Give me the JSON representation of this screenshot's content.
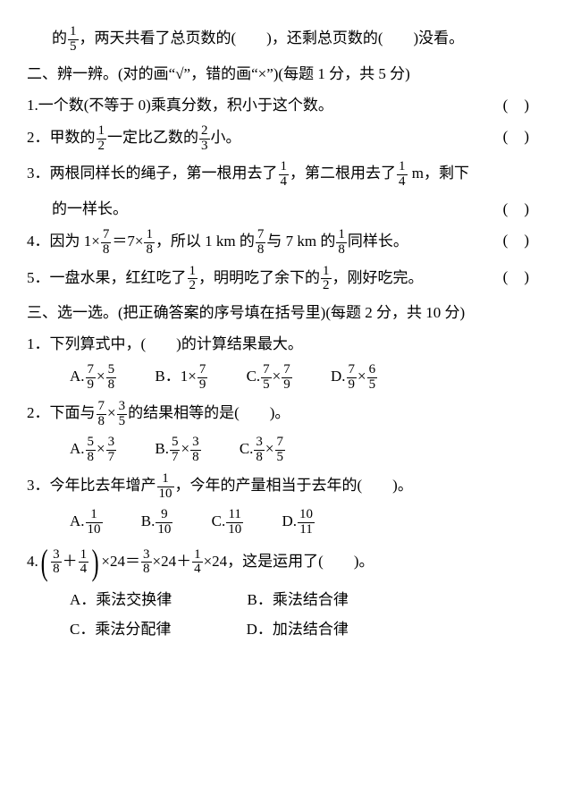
{
  "intro": {
    "prefix": "的",
    "f": {
      "n": "1",
      "d": "5"
    },
    "mid": "，两天共看了总页数的(　　)，还剩总页数的(　　)没看。"
  },
  "sec2_title": "二、辨一辨。(对的画“√”，错的画“×”)(每题 1 分，共 5 分)",
  "q2_1": "1.一个数(不等于 0)乘真分数，积小于这个数。",
  "q2_2a": "2．甲数的",
  "q2_2f1": {
    "n": "1",
    "d": "2"
  },
  "q2_2b": "一定比乙数的",
  "q2_2f2": {
    "n": "2",
    "d": "3"
  },
  "q2_2c": "小。",
  "q2_3a": "3．两根同样长的绳子，第一根用去了",
  "q2_3f1": {
    "n": "1",
    "d": "4"
  },
  "q2_3b": "，第二根用去了",
  "q2_3f2": {
    "n": "1",
    "d": "4"
  },
  "q2_3c": " m，剩下",
  "q2_3d": "的一样长。",
  "q2_4a": "4．因为 1×",
  "q2_4f1": {
    "n": "7",
    "d": "8"
  },
  "q2_4b": "＝7×",
  "q2_4f2": {
    "n": "1",
    "d": "8"
  },
  "q2_4c": "，所以 1 km 的",
  "q2_4f3": {
    "n": "7",
    "d": "8"
  },
  "q2_4d": "与 7 km 的",
  "q2_4f4": {
    "n": "1",
    "d": "8"
  },
  "q2_4e": "同样长。",
  "q2_5a": "5．一盘水果，红红吃了",
  "q2_5f1": {
    "n": "1",
    "d": "2"
  },
  "q2_5b": "，明明吃了余下的",
  "q2_5f2": {
    "n": "1",
    "d": "2"
  },
  "q2_5c": "，刚好吃完。",
  "sec3_title": "三、选一选。(把正确答案的序号填在括号里)(每题 2 分，共 10 分)",
  "q3_1": "1．下列算式中，(　　)的计算结果最大。",
  "q3_1A": {
    "p": "A.",
    "a": {
      "n": "7",
      "d": "9"
    },
    "b": {
      "n": "5",
      "d": "8"
    }
  },
  "q3_1B": {
    "p": "B．1×",
    "a": {
      "n": "7",
      "d": "9"
    }
  },
  "q3_1C": {
    "p": "C.",
    "a": {
      "n": "7",
      "d": "5"
    },
    "b": {
      "n": "7",
      "d": "9"
    }
  },
  "q3_1D": {
    "p": "D.",
    "a": {
      "n": "7",
      "d": "9"
    },
    "b": {
      "n": "6",
      "d": "5"
    }
  },
  "q3_2a": "2．下面与",
  "q3_2f1": {
    "n": "7",
    "d": "8"
  },
  "q3_2b": "×",
  "q3_2f2": {
    "n": "3",
    "d": "5"
  },
  "q3_2c": "的结果相等的是(　　)。",
  "q3_2A": {
    "p": "A.",
    "a": {
      "n": "5",
      "d": "8"
    },
    "b": {
      "n": "3",
      "d": "7"
    }
  },
  "q3_2B": {
    "p": "B.",
    "a": {
      "n": "5",
      "d": "7"
    },
    "b": {
      "n": "3",
      "d": "8"
    }
  },
  "q3_2C": {
    "p": "C.",
    "a": {
      "n": "3",
      "d": "8"
    },
    "b": {
      "n": "7",
      "d": "5"
    }
  },
  "q3_3a": "3．今年比去年增产",
  "q3_3f": {
    "n": "1",
    "d": "10"
  },
  "q3_3b": "，今年的产量相当于去年的(　　)。",
  "q3_3A": {
    "p": "A.",
    "a": {
      "n": "1",
      "d": "10"
    }
  },
  "q3_3B": {
    "p": "B.",
    "a": {
      "n": "9",
      "d": "10"
    }
  },
  "q3_3C": {
    "p": "C.",
    "a": {
      "n": "11",
      "d": "10"
    }
  },
  "q3_3D": {
    "p": "D.",
    "a": {
      "n": "10",
      "d": "11"
    }
  },
  "q3_4pre": "4.",
  "q3_4f1": {
    "n": "3",
    "d": "8"
  },
  "q3_4plus": "＋",
  "q3_4f2": {
    "n": "1",
    "d": "4"
  },
  "q3_4a": "×24＝",
  "q3_4f3": {
    "n": "3",
    "d": "8"
  },
  "q3_4b": "×24＋",
  "q3_4f4": {
    "n": "1",
    "d": "4"
  },
  "q3_4c": "×24，这是运用了(　　)。",
  "q3_4A": "A．乘法交换律",
  "q3_4B": "B．乘法结合律",
  "q3_4C": "C．乘法分配律",
  "q3_4D": "D．加法结合律",
  "paren": "()"
}
